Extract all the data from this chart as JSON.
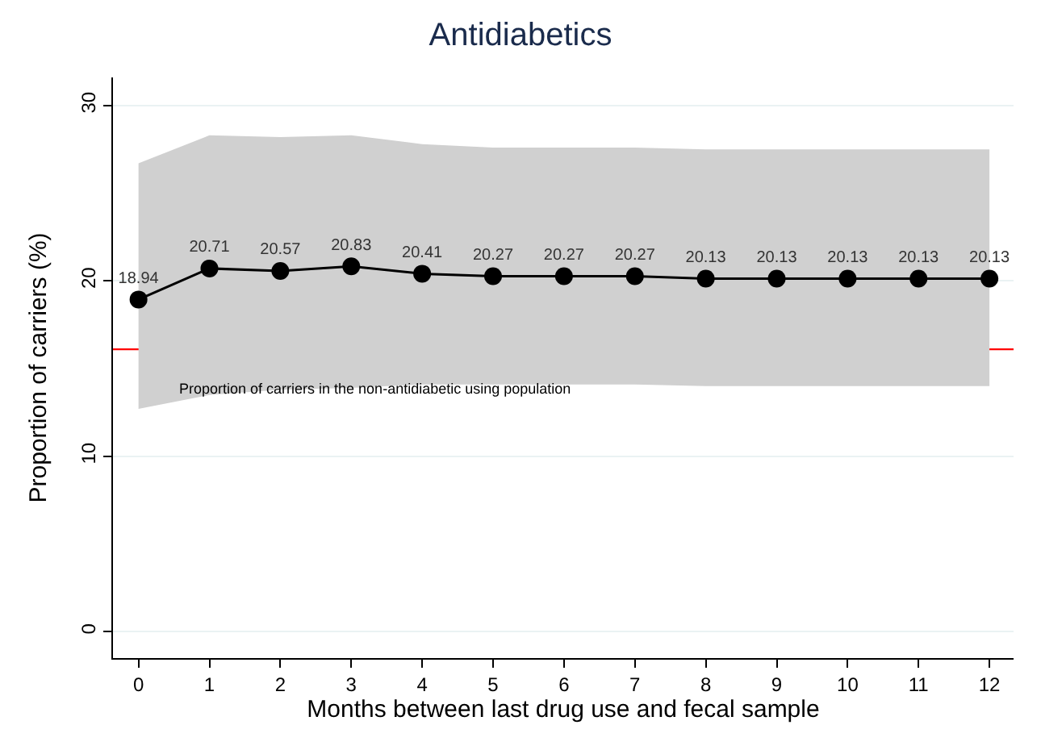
{
  "chart_data": {
    "type": "line",
    "title": "Antidiabetics",
    "xlabel": "Months between last drug use and fecal sample",
    "ylabel": "Proportion of carriers (%)",
    "x": [
      0,
      1,
      2,
      3,
      4,
      5,
      6,
      7,
      8,
      9,
      10,
      11,
      12
    ],
    "series": [
      {
        "color": "#000000",
        "values": [
          18.94,
          20.71,
          20.57,
          20.83,
          20.41,
          20.27,
          20.27,
          20.27,
          20.13,
          20.13,
          20.13,
          20.13,
          20.13
        ],
        "lower": [
          12.7,
          13.5,
          13.8,
          13.9,
          14.1,
          14.1,
          14.1,
          14.1,
          14.0,
          14.0,
          14.0,
          14.0,
          14.0
        ],
        "upper": [
          26.7,
          28.3,
          28.2,
          28.3,
          27.8,
          27.6,
          27.6,
          27.6,
          27.5,
          27.5,
          27.5,
          27.5,
          27.5
        ]
      }
    ],
    "data_labels": true,
    "marker": "circle",
    "line_style": "solid",
    "grid": "y",
    "xlim": [
      -0.36,
      12.34
    ],
    "xticks": [
      0,
      1,
      2,
      3,
      4,
      5,
      6,
      7,
      8,
      9,
      10,
      11,
      12
    ],
    "ylim": [
      -1.5,
      31.6
    ],
    "yticks": [
      0,
      10,
      20,
      30
    ],
    "ref_lines": [
      {
        "axis": "y",
        "value": 16.1,
        "color": "#ff0000",
        "label": "Proportion of carriers in the non-antidiabetic using population"
      }
    ]
  }
}
